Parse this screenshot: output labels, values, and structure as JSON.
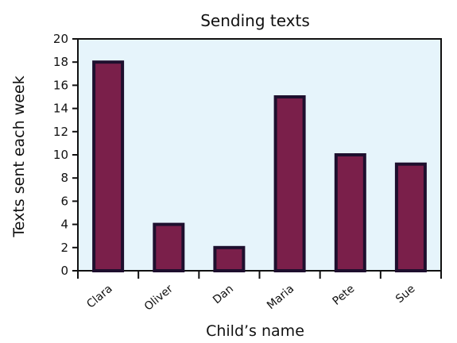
{
  "chart_data": {
    "type": "bar",
    "title": "Sending texts",
    "xlabel": "Child’s name",
    "ylabel": "Texts sent each week",
    "categories": [
      "Clara",
      "Oliver",
      "Dan",
      "Maria",
      "Pete",
      "Sue"
    ],
    "values": [
      18,
      4,
      2,
      15,
      10,
      9.2
    ],
    "ylim": [
      0,
      20
    ],
    "yticks": [
      "0",
      "2",
      "4",
      "6",
      "8",
      "10",
      "12",
      "14",
      "16",
      "18",
      "20"
    ],
    "grid": false,
    "legend": "none",
    "colors": {
      "plot_background": "#e6f4fb",
      "bar_fill": "#7a1f4a",
      "bar_outline": "#1e0f2e",
      "axis": "#111111"
    }
  }
}
